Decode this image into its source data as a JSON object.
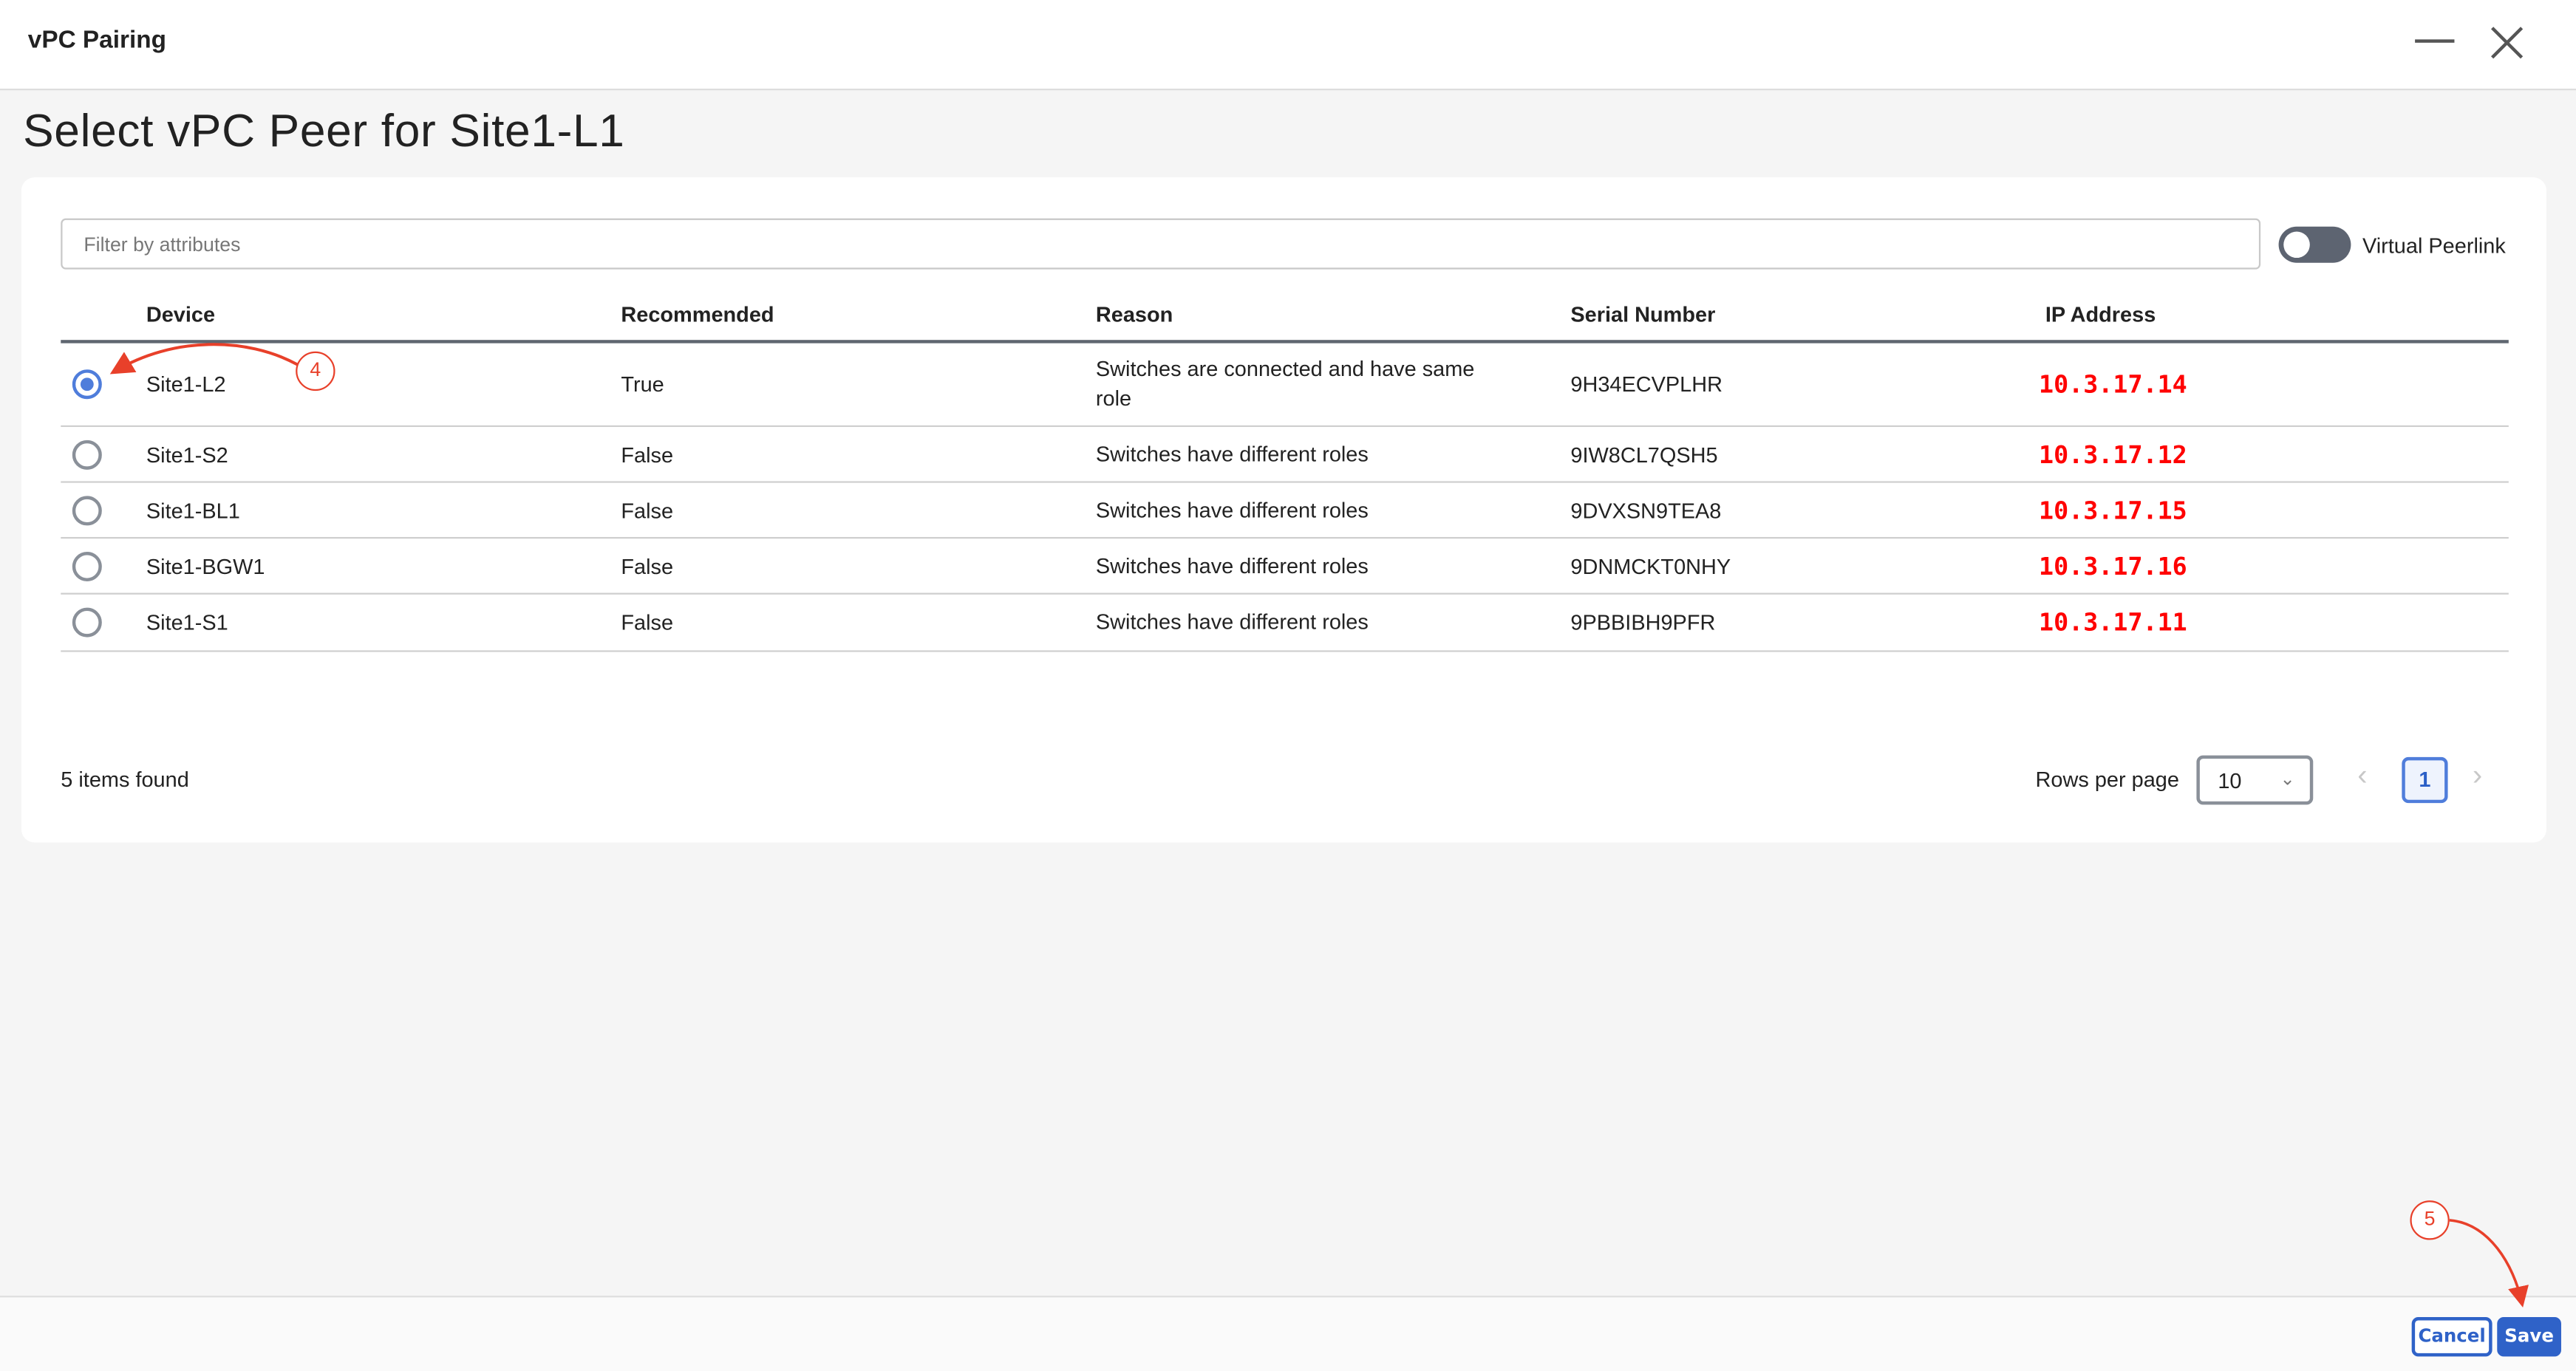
{
  "window": {
    "title": "vPC Pairing",
    "minimize_icon": "minimize-icon",
    "close_icon": "close-icon"
  },
  "page_title": "Select vPC Peer for Site1-L1",
  "filter": {
    "placeholder": "Filter by attributes",
    "value": ""
  },
  "virtual_peerlink": {
    "label": "Virtual Peerlink",
    "enabled": false
  },
  "table": {
    "columns": [
      "Device",
      "Recommended",
      "Reason",
      "Serial Number",
      "IP Address"
    ],
    "rows": [
      {
        "selected": true,
        "device": "Site1-L2",
        "recommended": "True",
        "reason": "Switches are connected and have same role",
        "serial": "9H34ECVPLHR",
        "ip": "10.3.17.14"
      },
      {
        "selected": false,
        "device": "Site1-S2",
        "recommended": "False",
        "reason": "Switches have different roles",
        "serial": "9IW8CL7QSH5",
        "ip": "10.3.17.12"
      },
      {
        "selected": false,
        "device": "Site1-BL1",
        "recommended": "False",
        "reason": "Switches have different roles",
        "serial": "9DVXSN9TEA8",
        "ip": "10.3.17.15"
      },
      {
        "selected": false,
        "device": "Site1-BGW1",
        "recommended": "False",
        "reason": "Switches have different roles",
        "serial": "9DNMCKT0NHY",
        "ip": "10.3.17.16"
      },
      {
        "selected": false,
        "device": "Site1-S1",
        "recommended": "False",
        "reason": "Switches have different roles",
        "serial": "9PBBIBH9PFR",
        "ip": "10.3.17.11"
      }
    ]
  },
  "pagination": {
    "items_found": "5 items found",
    "rows_per_page_label": "Rows per page",
    "rows_per_page": "10",
    "current_page": "1"
  },
  "footer": {
    "cancel_label": "Cancel",
    "save_label": "Save"
  },
  "annotations": {
    "step_a": "4",
    "step_b": "5",
    "color": "#e8402a"
  },
  "colors": {
    "accent": "#2f62c8",
    "ip_text": "#ff0000"
  }
}
